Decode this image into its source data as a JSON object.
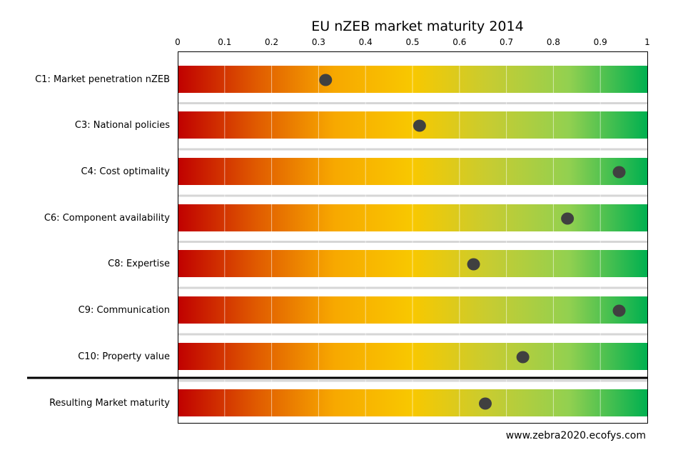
{
  "chart_data": {
    "type": "scatter",
    "title": "EU nZEB market maturity 2014",
    "xlim": [
      0,
      1
    ],
    "ticks": [
      0,
      0.1,
      0.2,
      0.3,
      0.4,
      0.5,
      0.6,
      0.7,
      0.8,
      0.9,
      1
    ],
    "tick_labels": [
      "0",
      "0.1",
      "0.2",
      "0.3",
      "0.4",
      "0.5",
      "0.6",
      "0.7",
      "0.8",
      "0.9",
      "1"
    ],
    "categories": [
      "C1: Market penetration nZEB",
      "C3: National policies",
      "C4: Cost optimality",
      "C6: Component availability",
      "C8: Expertise",
      "C9: Communication",
      "C10: Property value",
      "Resulting Market maturity"
    ],
    "values": [
      0.315,
      0.515,
      0.94,
      0.83,
      0.63,
      0.94,
      0.735,
      0.655
    ],
    "gradient_colors": [
      "#c00000",
      "#e05a00",
      "#f7a800",
      "#f8c800",
      "#c6cc32",
      "#92d050",
      "#00b050"
    ],
    "marker_color": "#404040",
    "grid": true
  },
  "footer": {
    "source": "www.zebra2020.ecofys.com"
  }
}
